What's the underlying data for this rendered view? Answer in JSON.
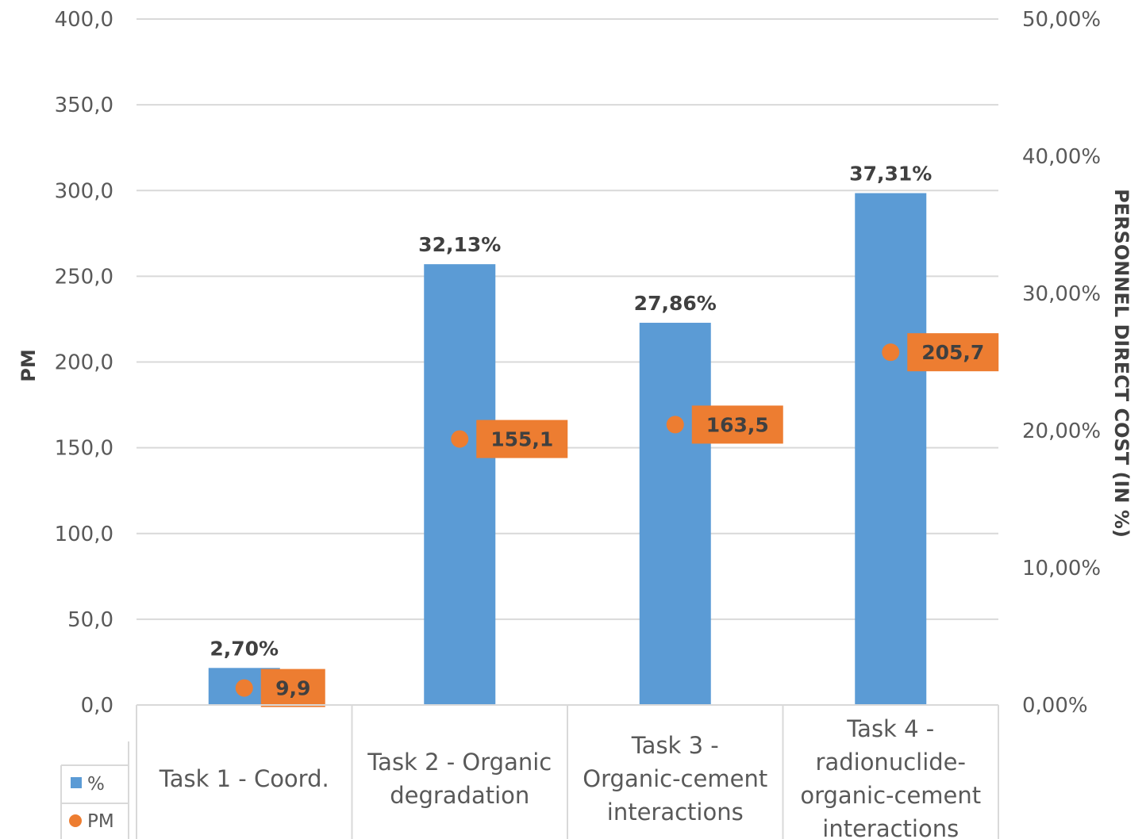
{
  "chart_data": {
    "type": "bar",
    "categories": [
      [
        "Task 1 - Coord."
      ],
      [
        "Task 2 - Organic",
        "degradation"
      ],
      [
        "Task 3 -",
        "Organic-cement",
        "interactions"
      ],
      [
        "Task 4 -",
        "radionuclide-",
        "organic-cement",
        "interactions"
      ]
    ],
    "series": [
      {
        "name": "%",
        "axis": "right",
        "kind": "bar",
        "values": [
          2.7,
          32.13,
          27.86,
          37.31
        ],
        "labels": [
          "2,70%",
          "32,13%",
          "27,86%",
          "37,31%"
        ],
        "color": "#5B9BD5"
      },
      {
        "name": "PM",
        "axis": "left",
        "kind": "point",
        "values": [
          9.9,
          155.1,
          163.5,
          205.7
        ],
        "labels": [
          "9,9",
          "155,1",
          "163,5",
          "205,7"
        ],
        "color": "#ED7D31"
      }
    ],
    "ylabel": "PM",
    "y2label": "PERSONNEL DIRECT COST (IN %)",
    "ylim": [
      0,
      400
    ],
    "y2lim": [
      0,
      50
    ],
    "yticks": [
      "0,0",
      "50,0",
      "100,0",
      "150,0",
      "200,0",
      "250,0",
      "300,0",
      "350,0",
      "400,0"
    ],
    "y2ticks": [
      "0,00%",
      "10,00%",
      "20,00%",
      "30,00%",
      "40,00%",
      "50,00%"
    ],
    "grid": true,
    "legend": "bottom-left"
  }
}
